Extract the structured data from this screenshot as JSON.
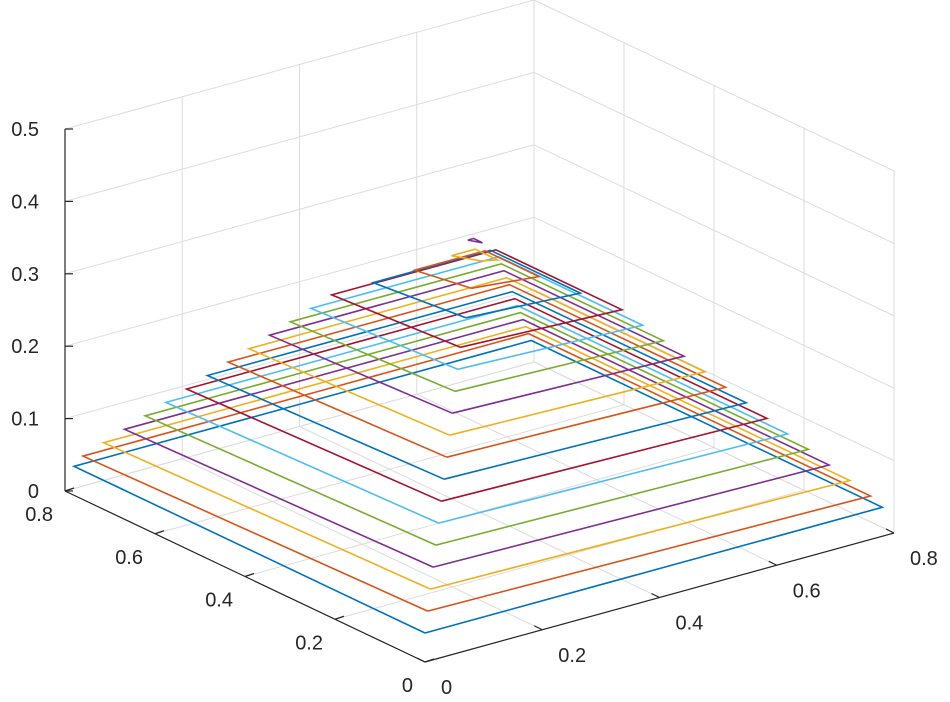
{
  "chart_data": {
    "type": "contour3",
    "title": "",
    "xlabel": "",
    "ylabel": "",
    "zlabel": "",
    "xlim": [
      0,
      0.8
    ],
    "ylim": [
      0,
      0.8
    ],
    "zlim": [
      0,
      0.5
    ],
    "x_ticks": [
      "0",
      "0.2",
      "0.4",
      "0.6",
      "0.8"
    ],
    "y_ticks": [
      "0",
      "0.2",
      "0.4",
      "0.6",
      "0.8"
    ],
    "z_ticks": [
      "0",
      "0.1",
      "0.2",
      "0.3",
      "0.4",
      "0.5"
    ],
    "grid": true,
    "box": true,
    "colors": [
      "#0072BD",
      "#D95319",
      "#EDB120",
      "#7E2F8E",
      "#77AC30",
      "#4DBEEE",
      "#A2142F"
    ],
    "levels": [
      {
        "z": 0.04,
        "x": [
          0.0,
          0.78,
          0.78,
          0.0
        ]
      },
      {
        "z": 0.06,
        "x": [
          0.02,
          0.76,
          0.76,
          0.0
        ]
      },
      {
        "z": 0.08,
        "x": [
          0.04,
          0.74,
          0.74,
          0.02
        ]
      },
      {
        "z": 0.1,
        "x": [
          0.06,
          0.72,
          0.72,
          0.04
        ]
      },
      {
        "z": 0.12,
        "x": [
          0.08,
          0.7,
          0.7,
          0.06
        ]
      },
      {
        "z": 0.14,
        "x": [
          0.1,
          0.68,
          0.68,
          0.08
        ]
      },
      {
        "z": 0.16,
        "x": [
          0.12,
          0.66,
          0.66,
          0.1
        ]
      },
      {
        "z": 0.18,
        "x": [
          0.14,
          0.64,
          0.64,
          0.12
        ]
      },
      {
        "z": 0.2,
        "x": [
          0.16,
          0.62,
          0.62,
          0.14
        ]
      },
      {
        "z": 0.22,
        "x": [
          0.18,
          0.6,
          0.6,
          0.16
        ]
      },
      {
        "z": 0.24,
        "x": [
          0.2,
          0.58,
          0.58,
          0.18
        ]
      },
      {
        "z": 0.26,
        "x": [
          0.22,
          0.56,
          0.56,
          0.2
        ]
      },
      {
        "z": 0.28,
        "x": [
          0.24,
          0.54,
          0.54,
          0.22
        ]
      },
      {
        "z": 0.3,
        "x": [
          0.26,
          0.52,
          0.52,
          0.24
        ]
      },
      {
        "z": 0.32,
        "x": [
          0.3,
          0.48,
          0.48,
          0.28
        ]
      },
      {
        "z": 0.34,
        "x": [
          0.34,
          0.44,
          0.44,
          0.32
        ]
      },
      {
        "z": 0.36,
        "x": [
          0.38,
          0.4,
          0.4,
          0.36
        ]
      },
      {
        "z": 0.38,
        "x": [
          0.39,
          0.39,
          0.39,
          0.38
        ]
      }
    ],
    "level_y": [
      [
        0.0,
        0.0,
        0.78,
        0.78
      ],
      [
        0.02,
        0.0,
        0.76,
        0.76
      ],
      [
        0.04,
        0.02,
        0.74,
        0.74
      ],
      [
        0.06,
        0.04,
        0.72,
        0.72
      ],
      [
        0.08,
        0.06,
        0.7,
        0.7
      ],
      [
        0.1,
        0.08,
        0.68,
        0.68
      ],
      [
        0.12,
        0.1,
        0.66,
        0.66
      ],
      [
        0.14,
        0.12,
        0.64,
        0.64
      ],
      [
        0.16,
        0.14,
        0.62,
        0.62
      ],
      [
        0.18,
        0.16,
        0.6,
        0.6
      ],
      [
        0.2,
        0.18,
        0.58,
        0.58
      ],
      [
        0.22,
        0.2,
        0.56,
        0.56
      ],
      [
        0.24,
        0.22,
        0.54,
        0.54
      ],
      [
        0.26,
        0.24,
        0.52,
        0.52
      ],
      [
        0.3,
        0.28,
        0.48,
        0.48
      ],
      [
        0.34,
        0.32,
        0.44,
        0.44
      ],
      [
        0.37,
        0.36,
        0.41,
        0.41
      ],
      [
        0.38,
        0.38,
        0.4,
        0.4
      ]
    ]
  }
}
